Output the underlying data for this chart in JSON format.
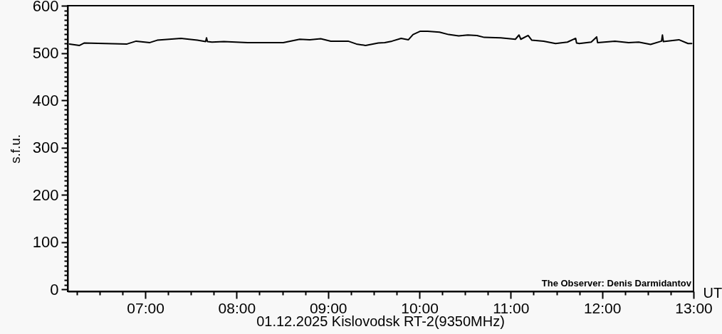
{
  "chart_data": {
    "type": "line",
    "title": "01.12.2025 Kislovodsk RT-2(9350MHz)",
    "xlabel": "UT",
    "ylabel": "s.f.u.",
    "annotations": [
      "The Observer: Denis Darmidantov"
    ],
    "x": [
      6.17,
      6.28,
      6.33,
      6.56,
      6.8,
      6.9,
      7.05,
      7.13,
      7.26,
      7.39,
      7.57,
      7.66,
      7.67,
      7.68,
      7.73,
      7.86,
      8.12,
      8.3,
      8.51,
      8.69,
      8.8,
      8.92,
      9.03,
      9.22,
      9.31,
      9.41,
      9.55,
      9.62,
      9.7,
      9.8,
      9.88,
      9.93,
      10.01,
      10.09,
      10.22,
      10.32,
      10.43,
      10.53,
      10.63,
      10.71,
      10.89,
      11.05,
      11.09,
      11.11,
      11.19,
      11.23,
      11.36,
      11.49,
      11.62,
      11.71,
      11.72,
      11.75,
      11.88,
      11.94,
      11.95,
      12.14,
      12.29,
      12.4,
      12.53,
      12.65,
      12.66,
      12.67,
      12.84,
      12.94,
      12.98
    ],
    "series": [
      {
        "color": "#000000",
        "values": [
          519,
          516,
          521,
          520,
          519,
          525,
          522,
          527,
          529,
          531,
          527,
          524,
          532,
          524,
          523,
          524,
          522,
          522,
          522,
          529,
          528,
          530,
          525,
          525,
          519,
          516,
          521,
          522,
          525,
          531,
          528,
          539,
          546,
          546,
          544,
          539,
          536,
          538,
          537,
          533,
          532,
          529,
          538,
          529,
          537,
          527,
          525,
          520,
          523,
          531,
          521,
          520,
          523,
          534,
          522,
          525,
          522,
          523,
          518,
          525,
          538,
          524,
          528,
          520,
          520
        ]
      }
    ],
    "xlim": [
      6.15,
      13
    ],
    "ylim": [
      -4,
      600
    ],
    "xticks": [
      {
        "value": 6.25,
        "label": null
      },
      {
        "value": 6.5,
        "label": null
      },
      {
        "value": 6.75,
        "label": null
      },
      {
        "value": 7,
        "label": "07:00"
      },
      {
        "value": 7.25,
        "label": null
      },
      {
        "value": 7.5,
        "label": null
      },
      {
        "value": 7.75,
        "label": null
      },
      {
        "value": 8,
        "label": "08:00"
      },
      {
        "value": 8.25,
        "label": null
      },
      {
        "value": 8.5,
        "label": null
      },
      {
        "value": 8.75,
        "label": null
      },
      {
        "value": 9,
        "label": "09:00"
      },
      {
        "value": 9.25,
        "label": null
      },
      {
        "value": 9.5,
        "label": null
      },
      {
        "value": 9.75,
        "label": null
      },
      {
        "value": 10,
        "label": "10:00"
      },
      {
        "value": 10.25,
        "label": null
      },
      {
        "value": 10.5,
        "label": null
      },
      {
        "value": 10.75,
        "label": null
      },
      {
        "value": 11,
        "label": "11:00"
      },
      {
        "value": 11.25,
        "label": null
      },
      {
        "value": 11.5,
        "label": null
      },
      {
        "value": 11.75,
        "label": null
      },
      {
        "value": 12,
        "label": "12:00"
      },
      {
        "value": 12.25,
        "label": null
      },
      {
        "value": 12.5,
        "label": null
      },
      {
        "value": 12.75,
        "label": null
      },
      {
        "value": 13,
        "label": "13:00"
      }
    ],
    "yticks": [
      0,
      {
        "value": 10,
        "label": null
      },
      {
        "value": 20,
        "label": null
      },
      {
        "value": 30,
        "label": null
      },
      {
        "value": 40,
        "label": null
      },
      {
        "value": 50,
        "label": null
      },
      {
        "value": 60,
        "label": null
      },
      {
        "value": 70,
        "label": null
      },
      {
        "value": 80,
        "label": null
      },
      {
        "value": 90,
        "label": null
      },
      100,
      {
        "value": 110,
        "label": null
      },
      {
        "value": 120,
        "label": null
      },
      {
        "value": 130,
        "label": null
      },
      {
        "value": 140,
        "label": null
      },
      {
        "value": 150,
        "label": null
      },
      {
        "value": 160,
        "label": null
      },
      {
        "value": 170,
        "label": null
      },
      {
        "value": 180,
        "label": null
      },
      {
        "value": 190,
        "label": null
      },
      200,
      {
        "value": 210,
        "label": null
      },
      {
        "value": 220,
        "label": null
      },
      {
        "value": 230,
        "label": null
      },
      {
        "value": 240,
        "label": null
      },
      {
        "value": 250,
        "label": null
      },
      {
        "value": 260,
        "label": null
      },
      {
        "value": 270,
        "label": null
      },
      {
        "value": 280,
        "label": null
      },
      {
        "value": 290,
        "label": null
      },
      300,
      {
        "value": 310,
        "label": null
      },
      {
        "value": 320,
        "label": null
      },
      {
        "value": 330,
        "label": null
      },
      {
        "value": 340,
        "label": null
      },
      {
        "value": 350,
        "label": null
      },
      {
        "value": 360,
        "label": null
      },
      {
        "value": 370,
        "label": null
      },
      {
        "value": 380,
        "label": null
      },
      {
        "value": 390,
        "label": null
      },
      400,
      {
        "value": 410,
        "label": null
      },
      {
        "value": 420,
        "label": null
      },
      {
        "value": 430,
        "label": null
      },
      {
        "value": 440,
        "label": null
      },
      {
        "value": 450,
        "label": null
      },
      {
        "value": 460,
        "label": null
      },
      {
        "value": 470,
        "label": null
      },
      {
        "value": 480,
        "label": null
      },
      {
        "value": 490,
        "label": null
      },
      500,
      {
        "value": 510,
        "label": null
      },
      {
        "value": 520,
        "label": null
      },
      {
        "value": 530,
        "label": null
      },
      {
        "value": 540,
        "label": null
      },
      {
        "value": 550,
        "label": null
      },
      {
        "value": 560,
        "label": null
      },
      {
        "value": 570,
        "label": null
      },
      {
        "value": 580,
        "label": null
      },
      {
        "value": 590,
        "label": null
      },
      600
    ],
    "line_style": "solid"
  }
}
